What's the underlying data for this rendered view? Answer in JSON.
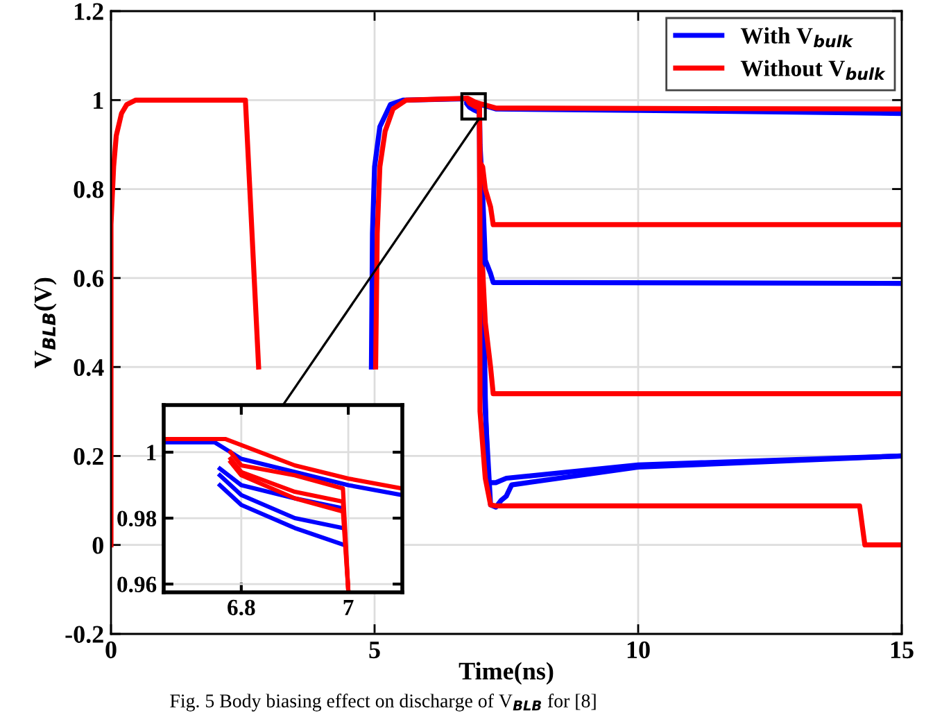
{
  "chart_data": [
    {
      "type": "line",
      "xlabel": "Time(ns)",
      "ylabel": "V$_{BLB}$(V)",
      "xlim": [
        0,
        15
      ],
      "ylim": [
        -0.2,
        1.2
      ],
      "xticks": [
        0,
        5,
        10,
        15
      ],
      "yticks": [
        -0.2,
        0,
        0.2,
        0.4,
        0.6,
        0.8,
        1,
        1.2
      ],
      "grid": true,
      "legend": "top right",
      "line_style": "solid",
      "marker": "none",
      "annotations": [
        "Fig. 5 Body biasing effect on discharge of V$_{BLB}$ for [8]"
      ],
      "series": [
        {
          "name": "With V$_{bulk}$",
          "color": "#0000ff",
          "x": [
            4.94,
            4.96,
            5.0,
            5.1,
            5.3,
            5.55,
            6.75,
            6.8,
            6.9,
            7.0,
            7.1,
            7.3,
            10,
            15
          ],
          "values": [
            0.4,
            0.7,
            0.85,
            0.94,
            0.99,
            1.0,
            1.003,
            0.998,
            0.994,
            0.99,
            0.987,
            0.98,
            0.977,
            0.97
          ]
        },
        {
          "color": "#0000ff",
          "x": [
            6.76,
            6.8,
            6.9,
            6.99,
            7.0,
            7.05,
            7.1,
            7.2,
            7.25,
            15
          ],
          "values": [
            0.995,
            0.99,
            0.986,
            0.983,
            0.9,
            0.79,
            0.64,
            0.61,
            0.59,
            0.588
          ]
        },
        {
          "color": "#0000ff",
          "x": [
            6.76,
            6.8,
            6.9,
            6.99,
            7.0,
            7.08,
            7.1,
            7.15,
            7.3,
            7.5,
            10,
            15
          ],
          "values": [
            0.993,
            0.987,
            0.98,
            0.977,
            0.8,
            0.49,
            0.33,
            0.14,
            0.14,
            0.15,
            0.18,
            0.2
          ]
        },
        {
          "color": "#0000ff",
          "x": [
            6.76,
            6.8,
            6.9,
            6.99,
            7.0,
            7.1,
            7.2,
            7.3,
            7.4,
            7.5,
            7.6,
            10,
            15
          ],
          "values": [
            0.99,
            0.984,
            0.977,
            0.972,
            0.6,
            0.3,
            0.09,
            0.085,
            0.1,
            0.11,
            0.135,
            0.175,
            0.2
          ]
        },
        {
          "name": "Without V$_{bulk}$",
          "color": "#ff0000",
          "x": [
            0,
            0,
            0.05,
            0.1,
            0.2,
            0.3,
            0.47,
            2.55,
            2.8,
            2.9,
            5.02,
            5.05,
            5.1,
            5.2,
            5.35,
            5.6,
            6.77,
            6.9,
            7.0,
            7.1,
            7.3,
            15
          ],
          "values": [
            0,
            0.72,
            0.85,
            0.92,
            0.97,
            0.99,
            1.0,
            1.0,
            0.4,
            null,
            0.4,
            0.7,
            0.85,
            0.93,
            0.98,
            1.0,
            1.004,
            0.996,
            0.992,
            0.989,
            0.982,
            0.98
          ]
        },
        {
          "color": "#ff0000",
          "x": [
            6.78,
            6.8,
            6.9,
            6.99,
            7.0,
            7.05,
            7.1,
            7.2,
            7.25,
            15
          ],
          "values": [
            1.0,
            0.996,
            0.993,
            0.989,
            0.86,
            0.85,
            0.8,
            0.76,
            0.72,
            0.72
          ]
        },
        {
          "color": "#ff0000",
          "x": [
            6.78,
            6.8,
            6.9,
            6.99,
            7.0,
            7.05,
            7.1,
            7.2,
            7.25,
            15
          ],
          "values": [
            0.998,
            0.994,
            0.988,
            0.985,
            0.63,
            0.62,
            0.5,
            0.4,
            0.34,
            0.34
          ]
        },
        {
          "color": "#ff0000",
          "x": [
            6.78,
            6.8,
            6.9,
            6.99,
            7.0,
            7.1,
            7.2,
            7.3,
            14.2,
            14.3,
            15
          ],
          "values": [
            0.997,
            0.993,
            0.986,
            0.982,
            0.3,
            0.15,
            0.09,
            0.088,
            0.088,
            0,
            0
          ]
        }
      ]
    },
    {
      "type": "line",
      "xlim": [
        6.655,
        7.101
      ],
      "ylim": [
        0.9575,
        1.0143
      ],
      "xticks": [
        6.8,
        7
      ],
      "yticks": [
        0.96,
        0.98,
        1
      ],
      "grid": true,
      "line_style": "solid",
      "marker": "none",
      "series": [
        {
          "color": "#0000ff",
          "x": [
            6.66,
            6.75,
            6.8,
            6.9,
            7.0,
            7.1
          ],
          "values": [
            1.003,
            1.003,
            0.998,
            0.994,
            0.99,
            0.987
          ]
        },
        {
          "color": "#0000ff",
          "x": [
            6.76,
            6.8,
            6.9,
            6.99
          ],
          "values": [
            0.995,
            0.99,
            0.986,
            0.983
          ]
        },
        {
          "color": "#0000ff",
          "x": [
            6.76,
            6.8,
            6.9,
            6.99
          ],
          "values": [
            0.993,
            0.987,
            0.98,
            0.977
          ]
        },
        {
          "color": "#0000ff",
          "x": [
            6.76,
            6.8,
            6.9,
            6.99
          ],
          "values": [
            0.99,
            0.984,
            0.977,
            0.972
          ]
        },
        {
          "color": "#ff0000",
          "x": [
            6.66,
            6.77,
            6.9,
            7.0,
            7.1
          ],
          "values": [
            1.004,
            1.004,
            0.996,
            0.992,
            0.989
          ]
        },
        {
          "color": "#ff0000",
          "x": [
            6.78,
            6.8,
            6.9,
            6.99,
            7.0
          ],
          "values": [
            1.0,
            0.996,
            0.993,
            0.989,
            0.958
          ]
        },
        {
          "color": "#ff0000",
          "x": [
            6.78,
            6.8,
            6.9,
            6.99,
            7.0
          ],
          "values": [
            0.998,
            0.994,
            0.988,
            0.985,
            0.958
          ]
        },
        {
          "color": "#ff0000",
          "x": [
            6.78,
            6.8,
            6.9,
            6.99,
            7.0
          ],
          "values": [
            0.997,
            0.993,
            0.986,
            0.982,
            0.958
          ]
        }
      ]
    }
  ]
}
